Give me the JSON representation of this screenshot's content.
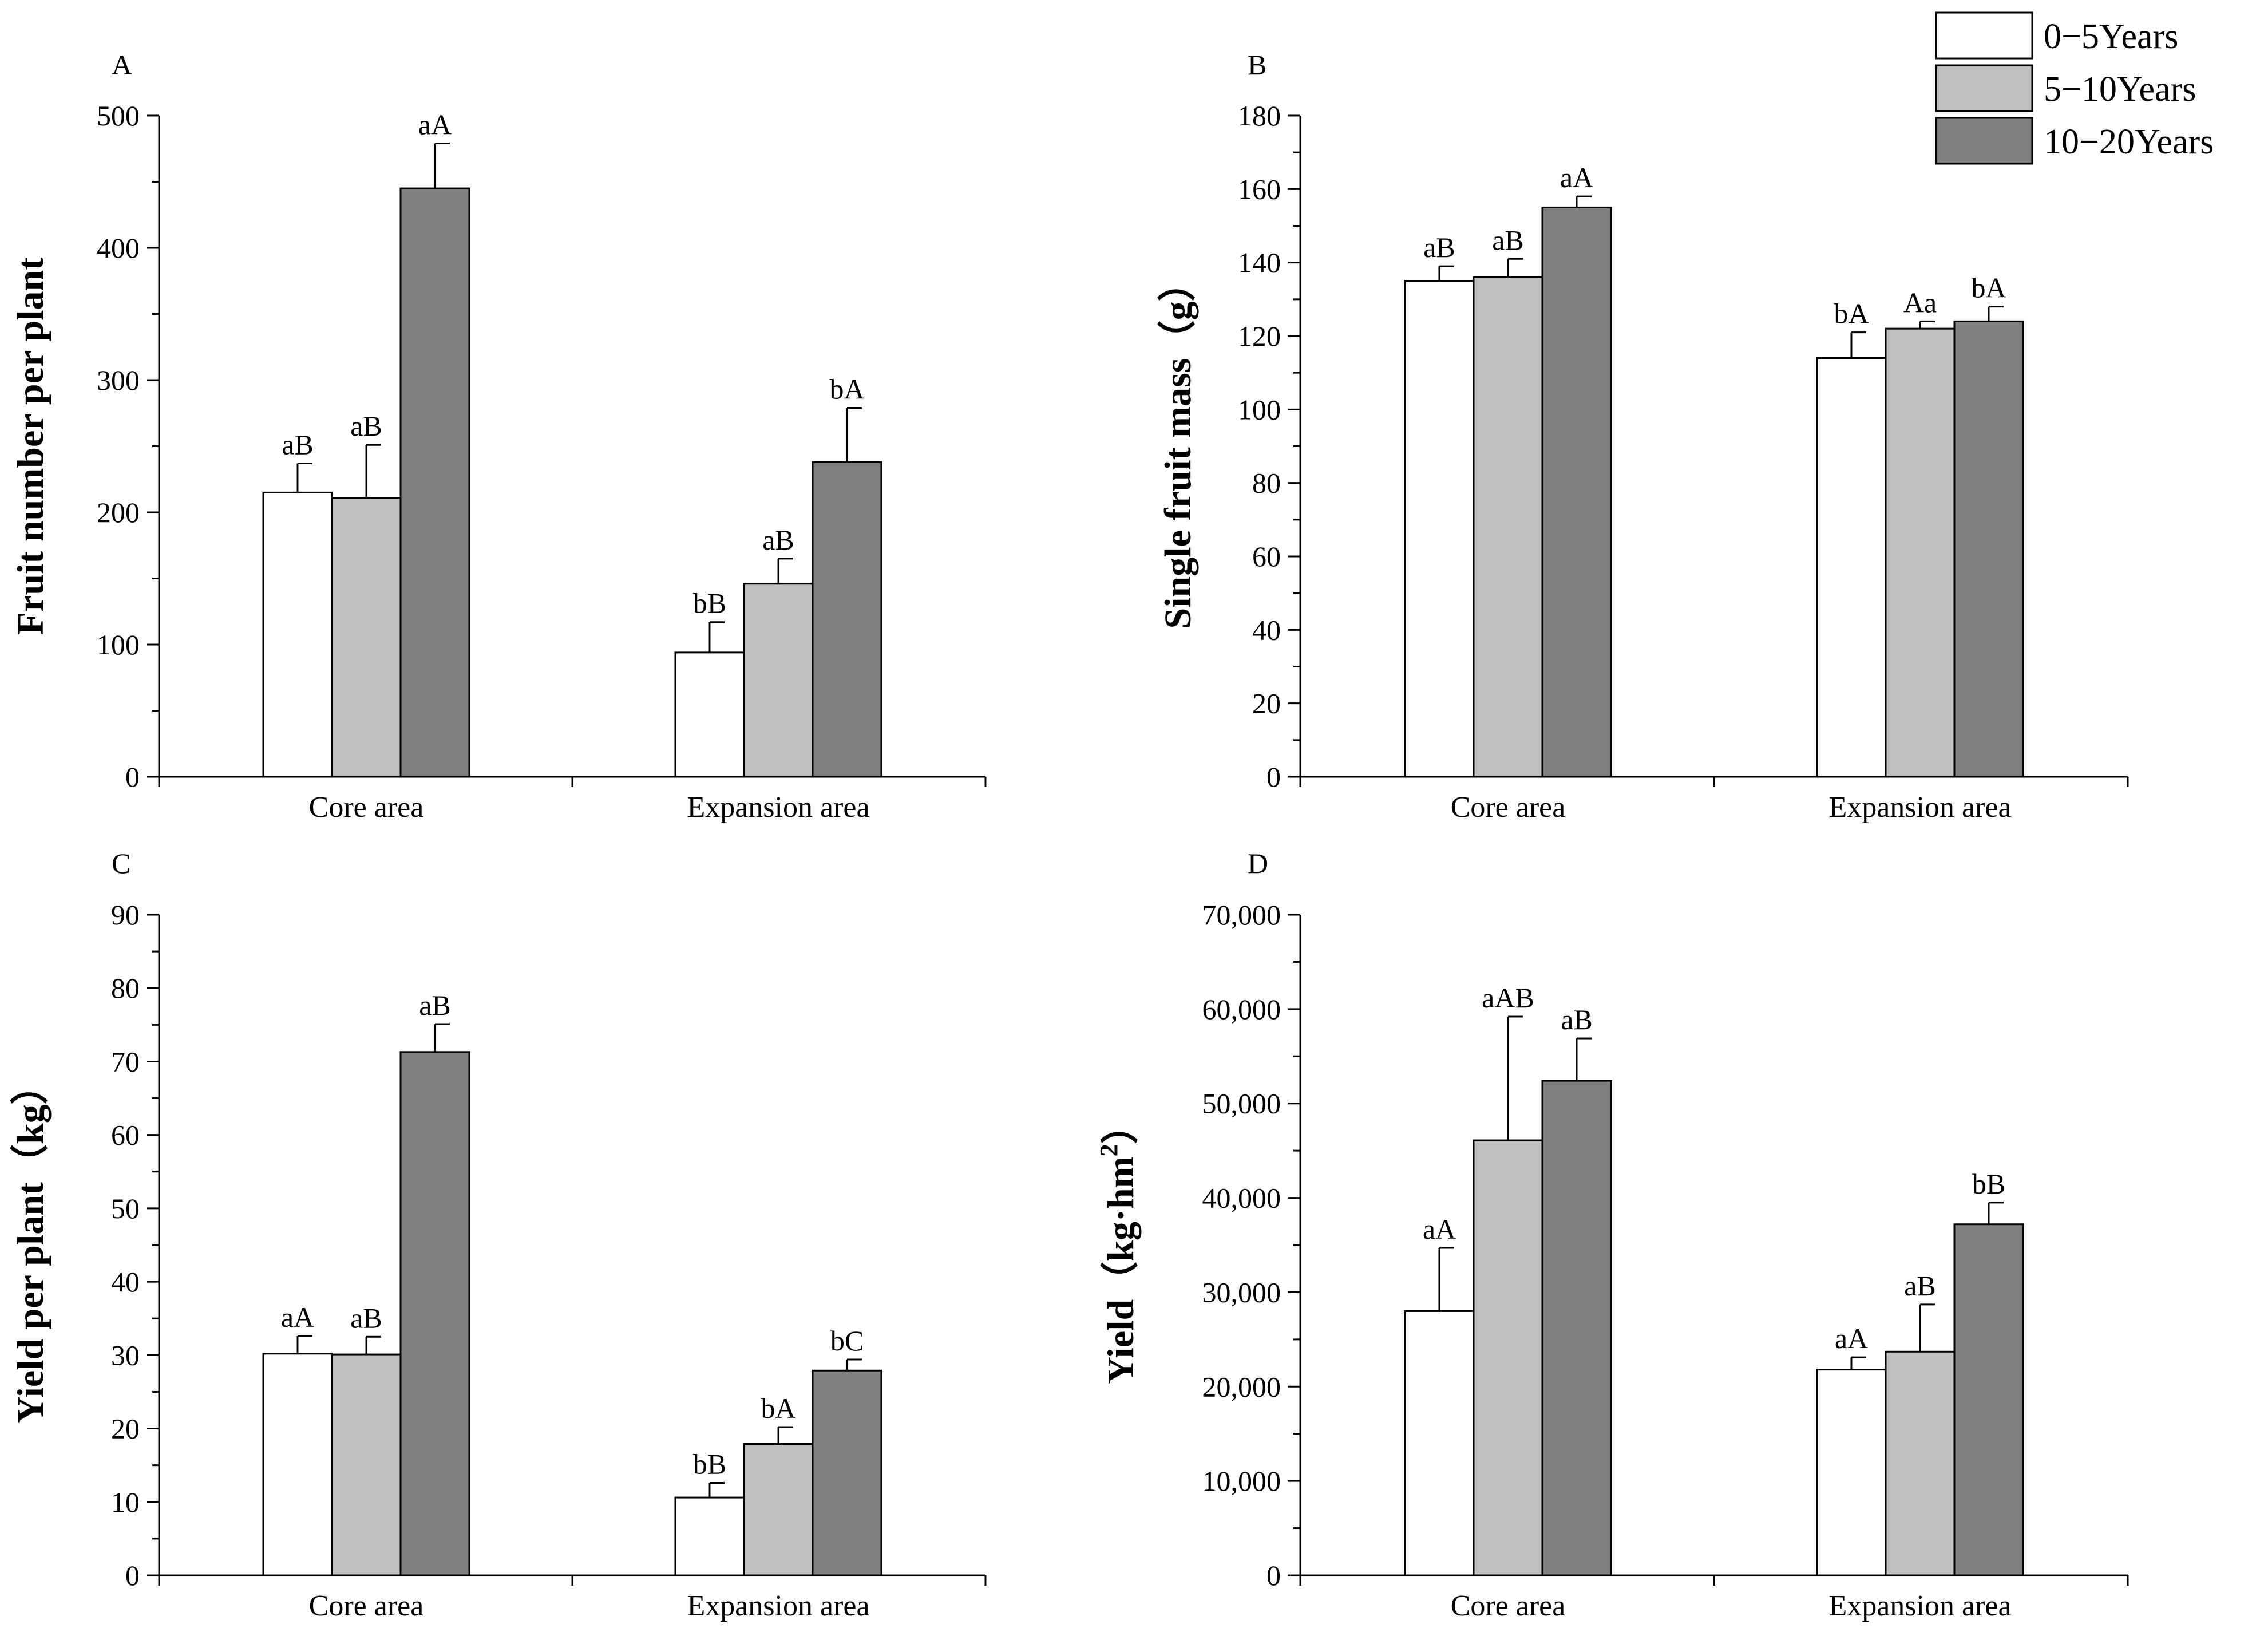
{
  "legend": {
    "items": [
      {
        "label": "0−5Years",
        "color": "#ffffff"
      },
      {
        "label": "5−10Years",
        "color": "#c0c0c0"
      },
      {
        "label": "10−20Years",
        "color": "#808080"
      }
    ]
  },
  "chart_data": [
    {
      "panel": "A",
      "type": "bar",
      "ylabel": "Fruit number per plant",
      "ylim": [
        0,
        500
      ],
      "yticks": [
        0,
        100,
        200,
        300,
        400,
        500
      ],
      "ytick_labels": [
        "0",
        "100",
        "200",
        "300",
        "400",
        "500"
      ],
      "categories": [
        "Core area",
        "Expansion area"
      ],
      "series": [
        {
          "name": "0−5Years",
          "values": [
            215,
            94
          ],
          "errors": [
            22,
            23
          ],
          "labels": [
            "aB",
            "bB"
          ]
        },
        {
          "name": "5−10Years",
          "values": [
            211,
            146
          ],
          "errors": [
            40,
            19
          ],
          "labels": [
            "aB",
            "aB"
          ]
        },
        {
          "name": "10−20Years",
          "values": [
            445,
            238
          ],
          "errors": [
            34,
            41
          ],
          "labels": [
            "aA",
            "bA"
          ]
        }
      ]
    },
    {
      "panel": "B",
      "type": "bar",
      "ylabel": "Single fruit mass（g）",
      "ylim": [
        0,
        180
      ],
      "yticks": [
        0,
        20,
        40,
        60,
        80,
        100,
        120,
        140,
        160,
        180
      ],
      "ytick_labels": [
        "0",
        "20",
        "40",
        "60",
        "80",
        "100",
        "120",
        "140",
        "160",
        "180"
      ],
      "categories": [
        "Core area",
        "Expansion area"
      ],
      "series": [
        {
          "name": "0−5Years",
          "values": [
            135,
            114
          ],
          "errors": [
            4,
            7
          ],
          "labels": [
            "aB",
            "bA"
          ]
        },
        {
          "name": "5−10Years",
          "values": [
            136,
            122
          ],
          "errors": [
            5,
            2
          ],
          "labels": [
            "aB",
            "Aa"
          ]
        },
        {
          "name": "10−20Years",
          "values": [
            155,
            124
          ],
          "errors": [
            3,
            4
          ],
          "labels": [
            "aA",
            "bA"
          ]
        }
      ]
    },
    {
      "panel": "C",
      "type": "bar",
      "ylabel": "Yield per plant（kg）",
      "ylim": [
        0,
        90
      ],
      "yticks": [
        0,
        10,
        20,
        30,
        40,
        50,
        60,
        70,
        80,
        90
      ],
      "ytick_labels": [
        "0",
        "10",
        "20",
        "30",
        "40",
        "50",
        "60",
        "70",
        "80",
        "90"
      ],
      "categories": [
        "Core area",
        "Expansion area"
      ],
      "series": [
        {
          "name": "0−5Years",
          "values": [
            30.2,
            10.6
          ],
          "errors": [
            2.4,
            2.0
          ],
          "labels": [
            "aA",
            "bB"
          ]
        },
        {
          "name": "5−10Years",
          "values": [
            30.1,
            17.9
          ],
          "errors": [
            2.4,
            2.3
          ],
          "labels": [
            "aB",
            "bA"
          ]
        },
        {
          "name": "10−20Years",
          "values": [
            71.3,
            27.9
          ],
          "errors": [
            3.8,
            1.5
          ],
          "labels": [
            "aB",
            "bC"
          ]
        }
      ]
    },
    {
      "panel": "D",
      "type": "bar",
      "ylabel": "Yield（kg·hm",
      "ylabel_sup": "2",
      "ylabel_end": "）",
      "ylim": [
        0,
        70000
      ],
      "yticks": [
        0,
        10000,
        20000,
        30000,
        40000,
        50000,
        60000,
        70000
      ],
      "ytick_labels": [
        "0",
        "10,000",
        "20,000",
        "30,000",
        "40,000",
        "50,000",
        "60,000",
        "70,000"
      ],
      "categories": [
        "Core area",
        "Expansion area"
      ],
      "series": [
        {
          "name": "0−5Years",
          "values": [
            28000,
            21800
          ],
          "errors": [
            6700,
            1300
          ],
          "labels": [
            "aA",
            "aA"
          ]
        },
        {
          "name": "5−10Years",
          "values": [
            46100,
            23700
          ],
          "errors": [
            13100,
            5000
          ],
          "labels": [
            "aAB",
            "aB"
          ]
        },
        {
          "name": "10−20Years",
          "values": [
            52400,
            37200
          ],
          "errors": [
            4500,
            2300
          ],
          "labels": [
            "aB",
            "bB"
          ]
        }
      ]
    }
  ]
}
